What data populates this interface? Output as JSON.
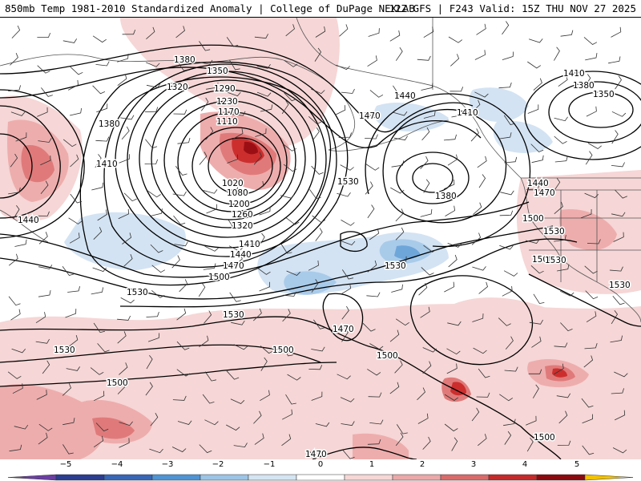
{
  "header": {
    "title_left": "850mb Temp 1981-2010 Standardized Anomaly | College of DuPage NEXLAB",
    "title_right": "12Z GFS | F243 Valid: 15Z THU NOV 27 2025"
  },
  "map": {
    "contour_labels": [
      {
        "id": "c1380a",
        "text": "1380"
      },
      {
        "id": "c1350",
        "text": "1350"
      },
      {
        "id": "c1320",
        "text": "1320"
      },
      {
        "id": "c1290",
        "text": "1290"
      },
      {
        "id": "c1230",
        "text": "1230"
      },
      {
        "id": "c1170",
        "text": "1170"
      },
      {
        "id": "c1110",
        "text": "1110"
      },
      {
        "id": "c1020",
        "text": "1020"
      },
      {
        "id": "c1080",
        "text": "1080"
      },
      {
        "id": "c1200",
        "text": "1200"
      },
      {
        "id": "c1260",
        "text": "1260"
      },
      {
        "id": "c1320b",
        "text": "1320"
      },
      {
        "id": "c1410a",
        "text": "1410"
      },
      {
        "id": "c1440a",
        "text": "1440"
      },
      {
        "id": "c1470a",
        "text": "1470"
      },
      {
        "id": "c1500a",
        "text": "1500"
      },
      {
        "id": "c1380b",
        "text": "1380"
      },
      {
        "id": "c1410b",
        "text": "1410"
      },
      {
        "id": "c1440b",
        "text": "1440"
      },
      {
        "id": "c1530a",
        "text": "1530"
      },
      {
        "id": "c1530b",
        "text": "1530"
      },
      {
        "id": "c1530c",
        "text": "1530"
      },
      {
        "id": "c1500b",
        "text": "1500"
      },
      {
        "id": "c1500c",
        "text": "1500"
      },
      {
        "id": "c1440c",
        "text": "1440"
      },
      {
        "id": "c1470b",
        "text": "1470"
      },
      {
        "id": "c1410c",
        "text": "1410"
      },
      {
        "id": "c1380c",
        "text": "1380"
      },
      {
        "id": "c1410d",
        "text": "1410"
      },
      {
        "id": "c1380d",
        "text": "1380"
      },
      {
        "id": "c1350b",
        "text": "1350"
      },
      {
        "id": "c1440d",
        "text": "1440"
      },
      {
        "id": "c1470c",
        "text": "1470"
      },
      {
        "id": "c1500d",
        "text": "1500"
      },
      {
        "id": "c1530d",
        "text": "1530"
      },
      {
        "id": "c1530e",
        "text": "1530"
      },
      {
        "id": "c1530f",
        "text": "1530"
      },
      {
        "id": "c1530g",
        "text": "1530"
      },
      {
        "id": "c1470d",
        "text": "1470"
      },
      {
        "id": "c1500e",
        "text": "1500"
      },
      {
        "id": "c1500f",
        "text": "1500"
      },
      {
        "id": "c1500g",
        "text": "1500"
      },
      {
        "id": "c1470e",
        "text": "1470"
      },
      {
        "id": "c1500h",
        "text": "1500"
      },
      {
        "id": "c1530h",
        "text": "1530"
      }
    ],
    "shading_colors": {
      "warm1": "#f6d6d6",
      "warm2": "#eeadad",
      "warm3": "#e07a7a",
      "warm4": "#cc2e2e",
      "warm5": "#9b0f14",
      "cool1": "#d3e3f3",
      "cool2": "#a9cbea",
      "cool3": "#6fa6da"
    }
  },
  "colorbar": {
    "ticks": [
      "−5",
      "−4",
      "−3",
      "−2",
      "−1",
      "0",
      "1",
      "2",
      "3",
      "4",
      "5"
    ],
    "segments": [
      "#6a3fa0",
      "#2a3d8f",
      "#3766b4",
      "#4f94d4",
      "#9cc4e6",
      "#d4e4f3",
      "#ffffff",
      "#f7d6d6",
      "#eba8a8",
      "#da6a6a",
      "#c42a2a",
      "#8b0a10",
      "#f2c200"
    ]
  }
}
